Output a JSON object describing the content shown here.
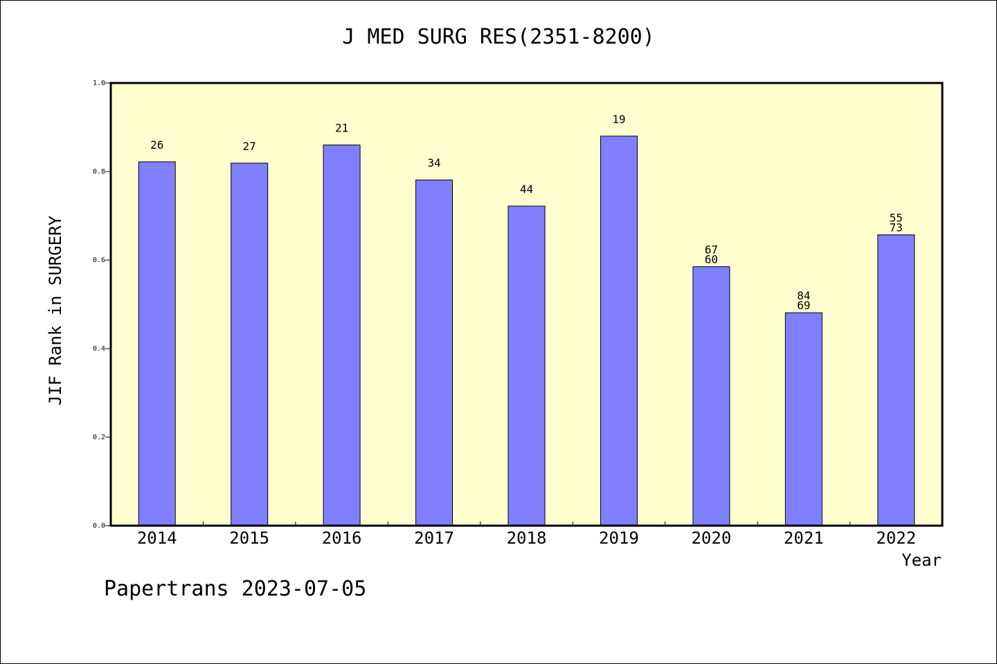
{
  "chart_data": {
    "type": "bar",
    "title": "J MED SURG RES(2351-8200)",
    "xlabel": "Year",
    "ylabel": "JIF Rank in SURGERY",
    "categories": [
      "2014",
      "2015",
      "2016",
      "2017",
      "2018",
      "2019",
      "2020",
      "2021",
      "2022"
    ],
    "values": [
      0.822,
      0.819,
      0.86,
      0.781,
      0.722,
      0.88,
      0.585,
      0.481,
      0.657
    ],
    "bar_labels": [
      [
        "26"
      ],
      [
        "27"
      ],
      [
        "21"
      ],
      [
        "34"
      ],
      [
        "44"
      ],
      [
        "19"
      ],
      [
        "67",
        "60"
      ],
      [
        "84",
        "69"
      ],
      [
        "55",
        "73"
      ]
    ],
    "ylim": [
      0,
      1.0
    ],
    "yticks": [
      0.0,
      0.2,
      0.4,
      0.6,
      0.8,
      1.0
    ],
    "ytick_labels": [
      "0.0",
      "0.2",
      "0.4",
      "0.6",
      "0.8",
      "1.0"
    ],
    "grid": false,
    "colors": {
      "bar": "#8080ff",
      "plot_background": "#ffffd0",
      "axis": "#000000"
    }
  },
  "footer": "Papertrans 2023-07-05"
}
